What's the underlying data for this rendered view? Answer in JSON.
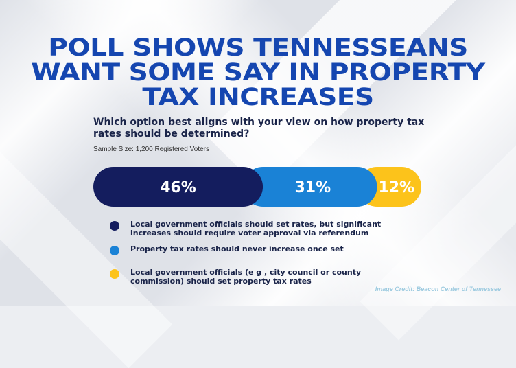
{
  "headline": {
    "line1": "POLL SHOWS TENNESSEANS",
    "line2": "WANT SOME SAY IN PROPERTY",
    "line3": "TAX INCREASES"
  },
  "question": "Which option best aligns with your view on how property tax rates should be determined?",
  "sample_size": "Sample Size: 1,200 Registered Voters",
  "credit": "Image Credit: Beacon Center of Tennessee",
  "colors": {
    "headline": "#1546b0",
    "series1": "#141d5e",
    "series2": "#1a82d6",
    "series3": "#fcc31b"
  },
  "chart_data": {
    "type": "bar",
    "orientation": "horizontal-stacked",
    "title": "Which option best aligns with your view on how property tax rates should be determined?",
    "categories": [
      "Local government officials should set rates, but significant increases should require voter approval via referendum",
      "Property tax rates should never increase once set",
      "Local government officials (e g , city council or county commission) should set property tax rates"
    ],
    "values": [
      46,
      31,
      12
    ],
    "labels": [
      "46%",
      "31%",
      "12%"
    ],
    "unit": "%",
    "legend_placement": "bottom",
    "grid": false
  }
}
